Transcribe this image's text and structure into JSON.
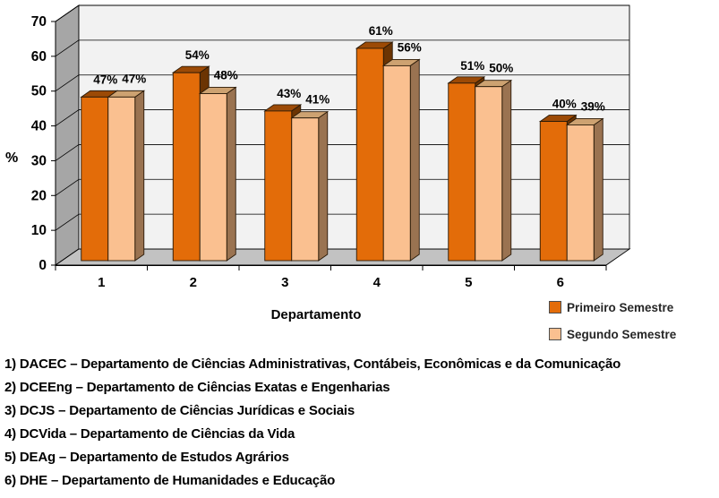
{
  "chart_data": {
    "type": "bar",
    "style": "3d-clustered-column",
    "categories": [
      "1",
      "2",
      "3",
      "4",
      "5",
      "6"
    ],
    "series": [
      {
        "name": "Primeiro Semestre",
        "values": [
          47,
          54,
          43,
          61,
          51,
          40
        ],
        "color": "#E36C09",
        "top_color": "#9C4A06",
        "side_color": "#6B3403"
      },
      {
        "name": "Segundo Semestre",
        "values": [
          47,
          48,
          41,
          56,
          50,
          39
        ],
        "color": "#FAC090",
        "top_color": "#CDA271",
        "side_color": "#9A7351"
      }
    ],
    "value_suffix": "%",
    "data_labels": true,
    "xlabel": "Departamento",
    "ylabel": "%",
    "ylim": [
      0,
      70
    ],
    "ytick_step": 10,
    "yticks": [
      "0",
      "10",
      "20",
      "30",
      "40",
      "50",
      "60",
      "70"
    ],
    "grid": true,
    "legend_position": "bottom-right",
    "back_wall_color": "#F2F2F2",
    "side_wall_color": "#A6A6A6",
    "floor_color": "#C2C2C2",
    "gridline_color": "#000000",
    "label_color": "#000000"
  },
  "legend": {
    "items": [
      {
        "label": "Primeiro Semestre",
        "color": "#E36C09"
      },
      {
        "label": "Segundo Semestre",
        "color": "#FAC090"
      }
    ]
  },
  "footnotes": [
    "1) DACEC – Departamento de Ciências Administrativas, Contábeis, Econômicas e da Comunicação",
    "2) DCEEng – Departamento de Ciências Exatas e Engenharias",
    "3) DCJS – Departamento de Ciências Jurídicas e Sociais",
    "4) DCVida – Departamento de Ciências da Vida",
    "5) DEAg – Departamento de Estudos Agrários",
    "6) DHE – Departamento de Humanidades e Educação"
  ]
}
